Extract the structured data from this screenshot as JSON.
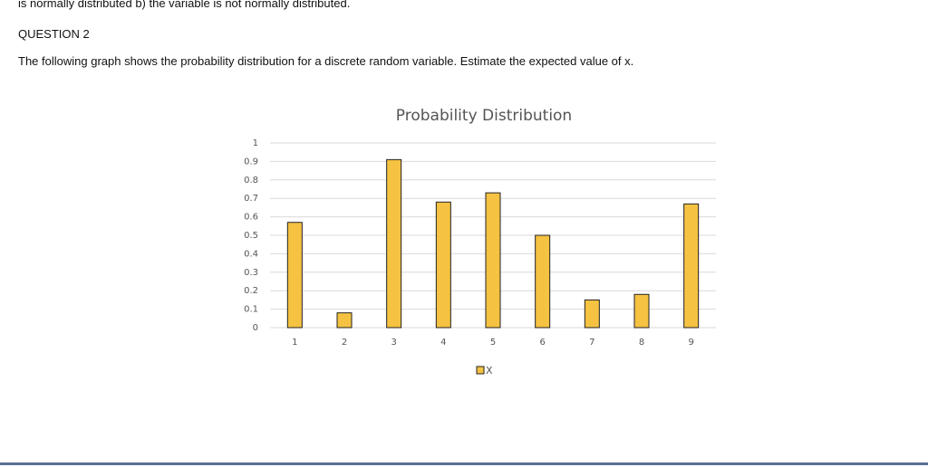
{
  "document": {
    "lines": [
      "is normally distributed b) the variable is not normally distributed.",
      "QUESTION 2",
      "The following graph shows the probability distribution for a discrete random variable. Estimate the expected value of x."
    ]
  },
  "chart_data": {
    "type": "bar",
    "title": "Probability Distribution",
    "categories": [
      "1",
      "2",
      "3",
      "4",
      "5",
      "6",
      "7",
      "8",
      "9"
    ],
    "series": [
      {
        "name": "X",
        "color": "#f5c242",
        "values": [
          0.57,
          0.08,
          0.91,
          0.68,
          0.73,
          0.5,
          0.15,
          0.18,
          0.67
        ]
      }
    ],
    "ylim": [
      0,
      1
    ],
    "yticks": [
      0,
      0.1,
      0.2,
      0.3,
      0.4,
      0.5,
      0.6,
      0.7,
      0.8,
      0.9,
      1
    ],
    "grid": true,
    "legend": "bottom"
  }
}
